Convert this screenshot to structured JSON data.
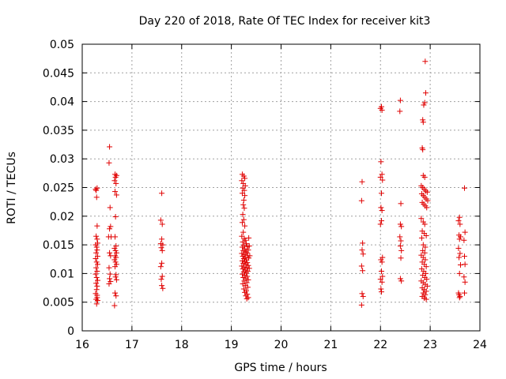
{
  "chart_data": {
    "type": "scatter",
    "title": "Day 220 of 2018, Rate Of TEC Index for receiver kit3",
    "xlabel": "GPS time / hours",
    "ylabel": "ROTI / TECUs",
    "xlim": [
      16,
      24
    ],
    "ylim": [
      0,
      0.05
    ],
    "grid": true,
    "marker": "+",
    "marker_color": "#e00000",
    "x_ticks": [
      16,
      17,
      18,
      19,
      20,
      21,
      22,
      23,
      24
    ],
    "x_tick_labels": [
      "16",
      "17",
      "18",
      "19",
      "20",
      "21",
      "22",
      "23",
      "24"
    ],
    "y_ticks": [
      0,
      0.005,
      0.01,
      0.015,
      0.02,
      0.025,
      0.03,
      0.035,
      0.04,
      0.045,
      0.05
    ],
    "y_tick_labels": [
      "0",
      "0.005",
      "0.01",
      "0.015",
      "0.02",
      "0.025",
      "0.03",
      "0.035",
      "0.04",
      "0.045",
      "0.05"
    ],
    "series": [
      {
        "name": "kit3",
        "points": [
          [
            16.27,
            0.0247
          ],
          [
            16.28,
            0.0245
          ],
          [
            16.3,
            0.0249
          ],
          [
            16.29,
            0.0233
          ],
          [
            16.3,
            0.0183
          ],
          [
            16.28,
            0.0165
          ],
          [
            16.3,
            0.016
          ],
          [
            16.31,
            0.0153
          ],
          [
            16.27,
            0.015
          ],
          [
            16.29,
            0.0146
          ],
          [
            16.3,
            0.0141
          ],
          [
            16.28,
            0.0136
          ],
          [
            16.31,
            0.013
          ],
          [
            16.27,
            0.0126
          ],
          [
            16.29,
            0.012
          ],
          [
            16.31,
            0.0116
          ],
          [
            16.28,
            0.011
          ],
          [
            16.3,
            0.0104
          ],
          [
            16.27,
            0.0099
          ],
          [
            16.29,
            0.0093
          ],
          [
            16.31,
            0.0088
          ],
          [
            16.28,
            0.0083
          ],
          [
            16.3,
            0.0078
          ],
          [
            16.29,
            0.0072
          ],
          [
            16.27,
            0.0065
          ],
          [
            16.3,
            0.0058
          ],
          [
            16.28,
            0.0055
          ],
          [
            16.31,
            0.0053
          ],
          [
            16.29,
            0.0047
          ],
          [
            16.3,
            0.0062
          ],
          [
            16.55,
            0.0321
          ],
          [
            16.54,
            0.0293
          ],
          [
            16.56,
            0.0215
          ],
          [
            16.57,
            0.0182
          ],
          [
            16.55,
            0.0178
          ],
          [
            16.53,
            0.0164
          ],
          [
            16.58,
            0.0164
          ],
          [
            16.55,
            0.0136
          ],
          [
            16.57,
            0.0131
          ],
          [
            16.54,
            0.011
          ],
          [
            16.56,
            0.0099
          ],
          [
            16.55,
            0.0091
          ],
          [
            16.57,
            0.0086
          ],
          [
            16.54,
            0.0082
          ],
          [
            16.66,
            0.0273
          ],
          [
            16.67,
            0.0268
          ],
          [
            16.69,
            0.0271
          ],
          [
            16.65,
            0.0262
          ],
          [
            16.68,
            0.0257
          ],
          [
            16.66,
            0.0243
          ],
          [
            16.69,
            0.0237
          ],
          [
            16.67,
            0.0199
          ],
          [
            16.66,
            0.0164
          ],
          [
            16.68,
            0.0148
          ],
          [
            16.65,
            0.0144
          ],
          [
            16.67,
            0.014
          ],
          [
            16.69,
            0.0136
          ],
          [
            16.66,
            0.0131
          ],
          [
            16.68,
            0.0128
          ],
          [
            16.65,
            0.0124
          ],
          [
            16.67,
            0.012
          ],
          [
            16.69,
            0.0116
          ],
          [
            16.66,
            0.0112
          ],
          [
            16.68,
            0.0098
          ],
          [
            16.67,
            0.0094
          ],
          [
            16.69,
            0.0089
          ],
          [
            16.66,
            0.0066
          ],
          [
            16.68,
            0.0061
          ],
          [
            16.65,
            0.0044
          ],
          [
            17.6,
            0.024
          ],
          [
            17.58,
            0.0193
          ],
          [
            17.61,
            0.0186
          ],
          [
            17.6,
            0.016
          ],
          [
            17.58,
            0.0152
          ],
          [
            17.62,
            0.015
          ],
          [
            17.59,
            0.0145
          ],
          [
            17.61,
            0.014
          ],
          [
            17.6,
            0.0118
          ],
          [
            17.58,
            0.0112
          ],
          [
            17.61,
            0.0095
          ],
          [
            17.59,
            0.009
          ],
          [
            17.6,
            0.0079
          ],
          [
            17.62,
            0.0074
          ],
          [
            19.22,
            0.0273
          ],
          [
            19.25,
            0.027
          ],
          [
            19.27,
            0.0266
          ],
          [
            19.21,
            0.0262
          ],
          [
            19.24,
            0.0257
          ],
          [
            19.28,
            0.0253
          ],
          [
            19.23,
            0.0249
          ],
          [
            19.26,
            0.0245
          ],
          [
            19.22,
            0.024
          ],
          [
            19.27,
            0.0236
          ],
          [
            19.25,
            0.0228
          ],
          [
            19.24,
            0.022
          ],
          [
            19.26,
            0.0214
          ],
          [
            19.23,
            0.0203
          ],
          [
            19.25,
            0.0194
          ],
          [
            19.22,
            0.0189
          ],
          [
            19.27,
            0.0183
          ],
          [
            19.24,
            0.0172
          ],
          [
            19.21,
            0.0165
          ],
          [
            19.26,
            0.0161
          ],
          [
            19.28,
            0.0158
          ],
          [
            19.23,
            0.0155
          ],
          [
            19.3,
            0.0152
          ],
          [
            19.25,
            0.0149
          ],
          [
            19.32,
            0.0147
          ],
          [
            19.22,
            0.0146
          ],
          [
            19.27,
            0.0143
          ],
          [
            19.34,
            0.0141
          ],
          [
            19.24,
            0.014
          ],
          [
            19.29,
            0.0138
          ],
          [
            19.31,
            0.0136
          ],
          [
            19.21,
            0.0135
          ],
          [
            19.26,
            0.0133
          ],
          [
            19.33,
            0.0131
          ],
          [
            19.23,
            0.013
          ],
          [
            19.28,
            0.0128
          ],
          [
            19.35,
            0.0127
          ],
          [
            19.25,
            0.0126
          ],
          [
            19.3,
            0.0124
          ],
          [
            19.22,
            0.0122
          ],
          [
            19.27,
            0.0121
          ],
          [
            19.32,
            0.0119
          ],
          [
            19.24,
            0.0118
          ],
          [
            19.29,
            0.0116
          ],
          [
            19.34,
            0.0114
          ],
          [
            19.21,
            0.0113
          ],
          [
            19.26,
            0.0111
          ],
          [
            19.31,
            0.011
          ],
          [
            19.23,
            0.0108
          ],
          [
            19.28,
            0.0106
          ],
          [
            19.33,
            0.0104
          ],
          [
            19.25,
            0.0103
          ],
          [
            19.3,
            0.0101
          ],
          [
            19.22,
            0.0099
          ],
          [
            19.27,
            0.0097
          ],
          [
            19.32,
            0.0095
          ],
          [
            19.24,
            0.0093
          ],
          [
            19.29,
            0.0091
          ],
          [
            19.34,
            0.0089
          ],
          [
            19.26,
            0.0087
          ],
          [
            19.31,
            0.0084
          ],
          [
            19.23,
            0.0082
          ],
          [
            19.28,
            0.0079
          ],
          [
            19.33,
            0.0076
          ],
          [
            19.25,
            0.0073
          ],
          [
            19.3,
            0.007
          ],
          [
            19.27,
            0.0067
          ],
          [
            19.32,
            0.0064
          ],
          [
            19.29,
            0.0061
          ],
          [
            19.34,
            0.0058
          ],
          [
            19.31,
            0.0056
          ],
          [
            19.35,
            0.0162
          ],
          [
            19.36,
            0.0148
          ],
          [
            19.37,
            0.0131
          ],
          [
            19.36,
            0.0109
          ],
          [
            21.63,
            0.026
          ],
          [
            21.62,
            0.0227
          ],
          [
            21.64,
            0.0153
          ],
          [
            21.63,
            0.0141
          ],
          [
            21.65,
            0.0134
          ],
          [
            21.62,
            0.0113
          ],
          [
            21.64,
            0.0105
          ],
          [
            21.63,
            0.0065
          ],
          [
            21.65,
            0.006
          ],
          [
            21.62,
            0.0045
          ],
          [
            22.0,
            0.0388
          ],
          [
            22.02,
            0.0391
          ],
          [
            22.03,
            0.0385
          ],
          [
            22.01,
            0.0295
          ],
          [
            22.03,
            0.0273
          ],
          [
            22.0,
            0.0268
          ],
          [
            22.04,
            0.0263
          ],
          [
            22.02,
            0.024
          ],
          [
            22.01,
            0.0215
          ],
          [
            22.03,
            0.021
          ],
          [
            22.02,
            0.0192
          ],
          [
            22.0,
            0.0186
          ],
          [
            22.04,
            0.0128
          ],
          [
            22.01,
            0.0124
          ],
          [
            22.03,
            0.012
          ],
          [
            22.02,
            0.0104
          ],
          [
            22.04,
            0.0095
          ],
          [
            22.0,
            0.009
          ],
          [
            22.03,
            0.0085
          ],
          [
            22.01,
            0.0073
          ],
          [
            22.02,
            0.0068
          ],
          [
            22.4,
            0.0402
          ],
          [
            22.39,
            0.0383
          ],
          [
            22.41,
            0.0222
          ],
          [
            22.4,
            0.0186
          ],
          [
            22.42,
            0.0182
          ],
          [
            22.39,
            0.0164
          ],
          [
            22.41,
            0.0157
          ],
          [
            22.4,
            0.0148
          ],
          [
            22.42,
            0.014
          ],
          [
            22.41,
            0.0127
          ],
          [
            22.4,
            0.0091
          ],
          [
            22.42,
            0.0087
          ],
          [
            22.9,
            0.047
          ],
          [
            22.91,
            0.0415
          ],
          [
            22.89,
            0.0398
          ],
          [
            22.87,
            0.0394
          ],
          [
            22.85,
            0.0368
          ],
          [
            22.86,
            0.0364
          ],
          [
            22.84,
            0.0319
          ],
          [
            22.85,
            0.0316
          ],
          [
            22.86,
            0.0271
          ],
          [
            22.89,
            0.0268
          ],
          [
            22.82,
            0.0253
          ],
          [
            22.85,
            0.025
          ],
          [
            22.88,
            0.0247
          ],
          [
            22.91,
            0.0244
          ],
          [
            22.94,
            0.0242
          ],
          [
            22.83,
            0.0239
          ],
          [
            22.86,
            0.0236
          ],
          [
            22.89,
            0.0233
          ],
          [
            22.92,
            0.023
          ],
          [
            22.95,
            0.0227
          ],
          [
            22.84,
            0.0224
          ],
          [
            22.87,
            0.0221
          ],
          [
            22.9,
            0.0218
          ],
          [
            22.93,
            0.0215
          ],
          [
            22.82,
            0.0196
          ],
          [
            22.86,
            0.019
          ],
          [
            22.89,
            0.0186
          ],
          [
            22.84,
            0.0174
          ],
          [
            22.88,
            0.017
          ],
          [
            22.92,
            0.0166
          ],
          [
            22.83,
            0.0162
          ],
          [
            22.86,
            0.015
          ],
          [
            22.9,
            0.0146
          ],
          [
            22.85,
            0.014
          ],
          [
            22.89,
            0.0136
          ],
          [
            22.82,
            0.0132
          ],
          [
            22.86,
            0.0128
          ],
          [
            22.9,
            0.0124
          ],
          [
            22.84,
            0.012
          ],
          [
            22.88,
            0.0116
          ],
          [
            22.92,
            0.0112
          ],
          [
            22.83,
            0.0108
          ],
          [
            22.87,
            0.0104
          ],
          [
            22.91,
            0.01
          ],
          [
            22.85,
            0.0097
          ],
          [
            22.89,
            0.0093
          ],
          [
            22.93,
            0.009
          ],
          [
            22.82,
            0.0087
          ],
          [
            22.86,
            0.0084
          ],
          [
            22.9,
            0.0081
          ],
          [
            22.94,
            0.0078
          ],
          [
            22.84,
            0.0075
          ],
          [
            22.88,
            0.0072
          ],
          [
            22.92,
            0.0069
          ],
          [
            22.86,
            0.0066
          ],
          [
            22.9,
            0.0063
          ],
          [
            22.84,
            0.006
          ],
          [
            22.88,
            0.0057
          ],
          [
            22.92,
            0.0055
          ],
          [
            23.59,
            0.0198
          ],
          [
            23.57,
            0.0192
          ],
          [
            23.6,
            0.0186
          ],
          [
            23.58,
            0.0167
          ],
          [
            23.61,
            0.0164
          ],
          [
            23.59,
            0.016
          ],
          [
            23.57,
            0.0144
          ],
          [
            23.6,
            0.0135
          ],
          [
            23.58,
            0.0128
          ],
          [
            23.61,
            0.0115
          ],
          [
            23.59,
            0.01
          ],
          [
            23.57,
            0.0066
          ],
          [
            23.58,
            0.0063
          ],
          [
            23.6,
            0.006
          ],
          [
            23.59,
            0.0058
          ],
          [
            23.69,
            0.0249
          ],
          [
            23.7,
            0.0172
          ],
          [
            23.68,
            0.0158
          ],
          [
            23.69,
            0.013
          ],
          [
            23.7,
            0.0116
          ],
          [
            23.68,
            0.0094
          ],
          [
            23.7,
            0.0085
          ],
          [
            23.69,
            0.0066
          ]
        ]
      }
    ]
  }
}
